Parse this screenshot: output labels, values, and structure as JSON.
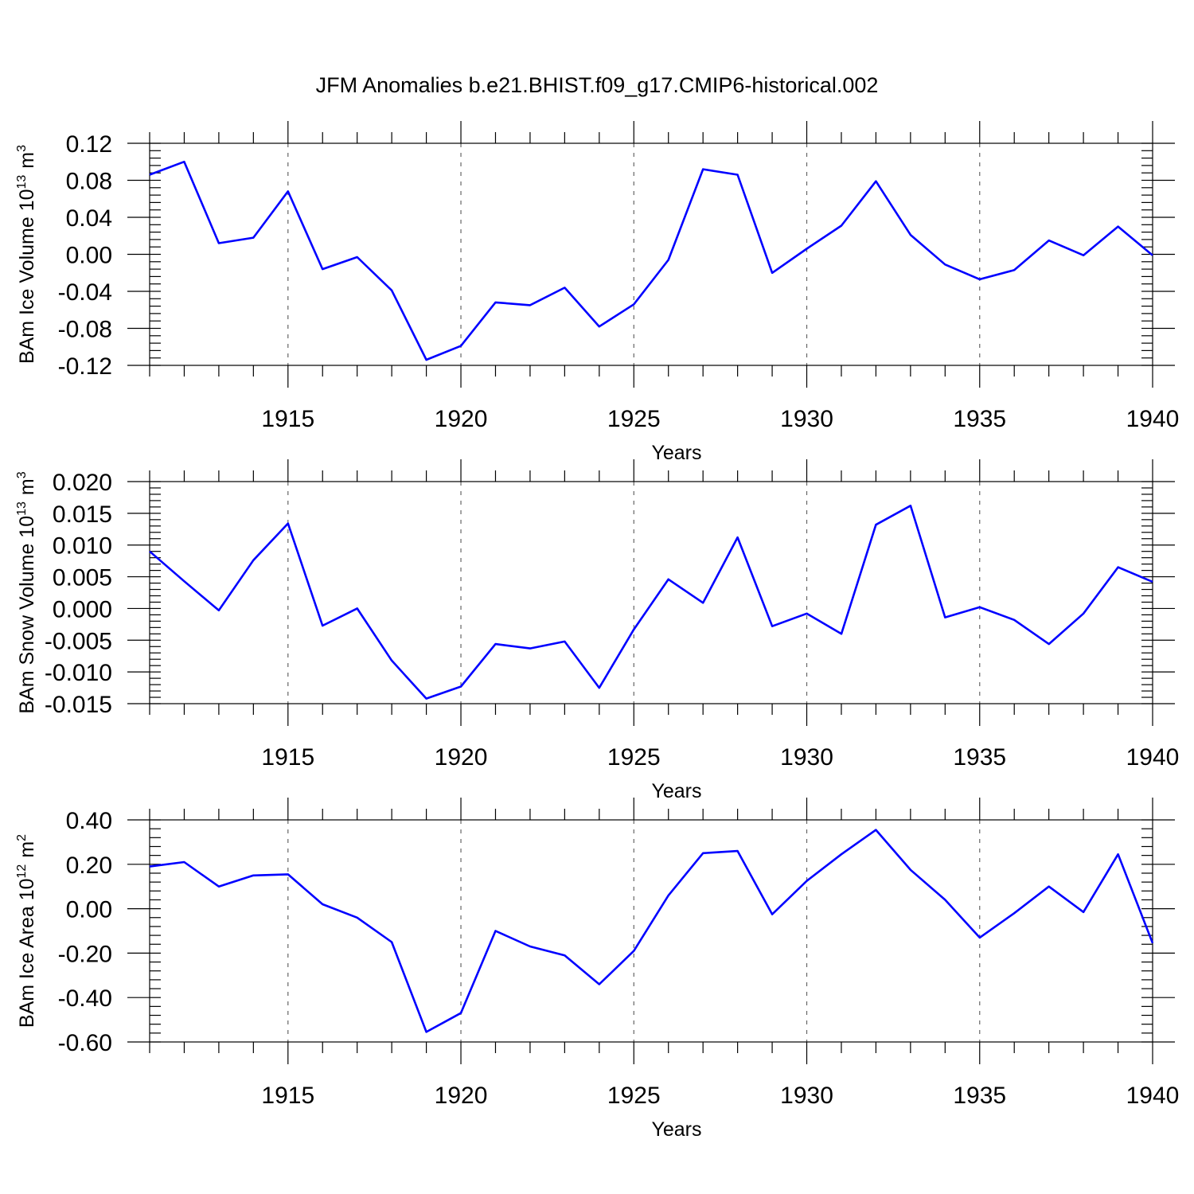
{
  "title": "JFM Anomalies b.e21.BHIST.f09_g17.CMIP6-historical.002",
  "colors": {
    "series": "#0000ff",
    "axis": "#000000",
    "grid": "#666666"
  },
  "chart_data": [
    {
      "type": "line",
      "ylabel": {
        "text": "BAm Ice Volume 10",
        "exponent": "13",
        "unit": "m",
        "unit_exponent": "3"
      },
      "xlabel": "Years",
      "xlim": [
        1911,
        1940
      ],
      "ylim": [
        -0.12,
        0.12
      ],
      "yticks": [
        {
          "value": 0.12,
          "label": "0.12"
        },
        {
          "value": 0.08,
          "label": "0.08"
        },
        {
          "value": 0.04,
          "label": "0.04"
        },
        {
          "value": 0.0,
          "label": "0.00"
        },
        {
          "value": -0.04,
          "label": "-0.04"
        },
        {
          "value": -0.08,
          "label": "-0.08"
        },
        {
          "value": -0.12,
          "label": "-0.12"
        }
      ],
      "yminor_step": 0.008,
      "xticks": [
        {
          "value": 1915,
          "label": "1915"
        },
        {
          "value": 1920,
          "label": "1920"
        },
        {
          "value": 1925,
          "label": "1925"
        },
        {
          "value": 1930,
          "label": "1930"
        },
        {
          "value": 1935,
          "label": "1935"
        },
        {
          "value": 1940,
          "label": "1940"
        }
      ],
      "grid": "vertical dashed at labeled years",
      "x": [
        1911,
        1912,
        1913,
        1914,
        1915,
        1916,
        1917,
        1918,
        1919,
        1920,
        1921,
        1922,
        1923,
        1924,
        1925,
        1926,
        1927,
        1928,
        1929,
        1930,
        1931,
        1932,
        1933,
        1934,
        1935,
        1936,
        1937,
        1938,
        1939,
        1940
      ],
      "values": [
        0.086,
        0.1,
        0.012,
        0.018,
        0.068,
        -0.016,
        -0.003,
        -0.039,
        -0.114,
        -0.099,
        -0.052,
        -0.055,
        -0.036,
        -0.078,
        -0.054,
        -0.006,
        0.092,
        0.086,
        -0.02,
        0.006,
        0.031,
        0.079,
        0.021,
        -0.011,
        -0.027,
        -0.017,
        0.015,
        -0.001,
        0.03,
        -0.001
      ]
    },
    {
      "type": "line",
      "ylabel": {
        "text": "BAm Snow Volume 10",
        "exponent": "13",
        "unit": "m",
        "unit_exponent": "3"
      },
      "xlabel": "Years",
      "xlim": [
        1911,
        1940
      ],
      "ylim": [
        -0.015,
        0.02
      ],
      "yticks": [
        {
          "value": 0.02,
          "label": "0.020"
        },
        {
          "value": 0.015,
          "label": "0.015"
        },
        {
          "value": 0.01,
          "label": "0.010"
        },
        {
          "value": 0.005,
          "label": "0.005"
        },
        {
          "value": 0.0,
          "label": "0.000"
        },
        {
          "value": -0.005,
          "label": "-0.005"
        },
        {
          "value": -0.01,
          "label": "-0.010"
        },
        {
          "value": -0.015,
          "label": "-0.015"
        }
      ],
      "yminor_step": 0.001,
      "xticks": [
        {
          "value": 1915,
          "label": "1915"
        },
        {
          "value": 1920,
          "label": "1920"
        },
        {
          "value": 1925,
          "label": "1925"
        },
        {
          "value": 1930,
          "label": "1930"
        },
        {
          "value": 1935,
          "label": "1935"
        },
        {
          "value": 1940,
          "label": "1940"
        }
      ],
      "grid": "vertical dashed at labeled years",
      "x": [
        1911,
        1912,
        1913,
        1914,
        1915,
        1916,
        1917,
        1918,
        1919,
        1920,
        1921,
        1922,
        1923,
        1924,
        1925,
        1926,
        1927,
        1928,
        1929,
        1930,
        1931,
        1932,
        1933,
        1934,
        1935,
        1936,
        1937,
        1938,
        1939,
        1940
      ],
      "values": [
        0.009,
        0.0043,
        -0.0003,
        0.0076,
        0.0134,
        -0.0027,
        0.0,
        -0.0082,
        -0.0142,
        -0.0123,
        -0.0056,
        -0.0063,
        -0.0052,
        -0.0125,
        -0.0033,
        0.0046,
        0.0009,
        0.0112,
        -0.0028,
        -0.0008,
        -0.004,
        0.0132,
        0.0162,
        -0.0014,
        0.0002,
        -0.0018,
        -0.0056,
        -0.0008,
        0.0065,
        0.0042
      ]
    },
    {
      "type": "line",
      "ylabel": {
        "text": "BAm Ice Area 10",
        "exponent": "12",
        "unit": "m",
        "unit_exponent": "2"
      },
      "xlabel": "Years",
      "xlim": [
        1911,
        1940
      ],
      "ylim": [
        -0.6,
        0.4
      ],
      "yticks": [
        {
          "value": 0.4,
          "label": "0.40"
        },
        {
          "value": 0.2,
          "label": "0.20"
        },
        {
          "value": 0.0,
          "label": "0.00"
        },
        {
          "value": -0.2,
          "label": "-0.20"
        },
        {
          "value": -0.4,
          "label": "-0.40"
        },
        {
          "value": -0.6,
          "label": "-0.60"
        }
      ],
      "yminor_step": 0.04,
      "xticks": [
        {
          "value": 1915,
          "label": "1915"
        },
        {
          "value": 1920,
          "label": "1920"
        },
        {
          "value": 1925,
          "label": "1925"
        },
        {
          "value": 1930,
          "label": "1930"
        },
        {
          "value": 1935,
          "label": "1935"
        },
        {
          "value": 1940,
          "label": "1940"
        }
      ],
      "grid": "vertical dashed at labeled years",
      "x": [
        1911,
        1912,
        1913,
        1914,
        1915,
        1916,
        1917,
        1918,
        1919,
        1920,
        1921,
        1922,
        1923,
        1924,
        1925,
        1926,
        1927,
        1928,
        1929,
        1930,
        1931,
        1932,
        1933,
        1934,
        1935,
        1936,
        1937,
        1938,
        1939,
        1940
      ],
      "values": [
        0.19,
        0.21,
        0.1,
        0.15,
        0.155,
        0.02,
        -0.04,
        -0.15,
        -0.555,
        -0.47,
        -0.1,
        -0.17,
        -0.21,
        -0.34,
        -0.19,
        0.06,
        0.25,
        0.26,
        -0.025,
        0.125,
        0.245,
        0.355,
        0.175,
        0.04,
        -0.13,
        -0.02,
        0.1,
        -0.015,
        0.245,
        -0.155
      ]
    }
  ]
}
